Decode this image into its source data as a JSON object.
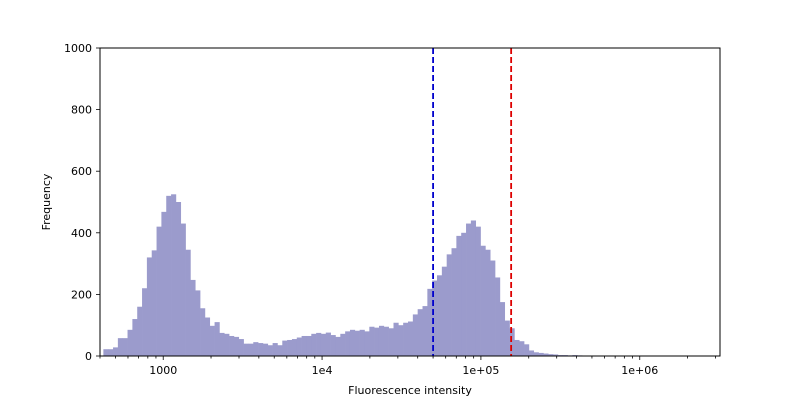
{
  "chart_data": {
    "type": "histogram",
    "xscale": "log",
    "xlabel": "Fluorescence intensity",
    "ylabel": "Frequency",
    "xlim": [
      400,
      3200000
    ],
    "ylim": [
      0,
      1000
    ],
    "bar_color": "#9b9bcc",
    "x_ticks": [
      {
        "value": 1000,
        "label": "1000"
      },
      {
        "value": 10000,
        "label": "1e4"
      },
      {
        "value": 100000,
        "label": "1e+05"
      },
      {
        "value": 1000000,
        "label": "1e+06"
      }
    ],
    "y_ticks": [
      {
        "value": 0,
        "label": "0"
      },
      {
        "value": 200,
        "label": "200"
      },
      {
        "value": 400,
        "label": "400"
      },
      {
        "value": 600,
        "label": "600"
      },
      {
        "value": 800,
        "label": "800"
      },
      {
        "value": 1000,
        "label": "1000"
      }
    ],
    "vlines": [
      {
        "x": 50000,
        "color": "#0000cc",
        "style": "dashed"
      },
      {
        "x": 155000,
        "color": "#dd0000",
        "style": "dashed"
      }
    ],
    "bins": {
      "x_start": 420,
      "x_end": 2500000,
      "counts": [
        22,
        22,
        28,
        58,
        58,
        85,
        120,
        160,
        220,
        320,
        343,
        420,
        468,
        520,
        525,
        500,
        430,
        345,
        247,
        213,
        155,
        125,
        98,
        110,
        75,
        72,
        65,
        62,
        55,
        40,
        40,
        45,
        42,
        40,
        35,
        42,
        35,
        50,
        52,
        55,
        60,
        65,
        65,
        72,
        75,
        72,
        76,
        68,
        62,
        72,
        80,
        85,
        82,
        85,
        80,
        95,
        92,
        98,
        95,
        90,
        108,
        100,
        108,
        112,
        135,
        152,
        162,
        218,
        245,
        262,
        290,
        330,
        350,
        390,
        400,
        430,
        440,
        420,
        358,
        345,
        310,
        255,
        175,
        115,
        90,
        52,
        48,
        38,
        18,
        12,
        10,
        8,
        6,
        5,
        3,
        3,
        2,
        3,
        2,
        1,
        1,
        1,
        0,
        1,
        0,
        0,
        0,
        0,
        0,
        0,
        0,
        0,
        0,
        0,
        0,
        0,
        0,
        0,
        0,
        0,
        0,
        0,
        0,
        0
      ]
    }
  }
}
